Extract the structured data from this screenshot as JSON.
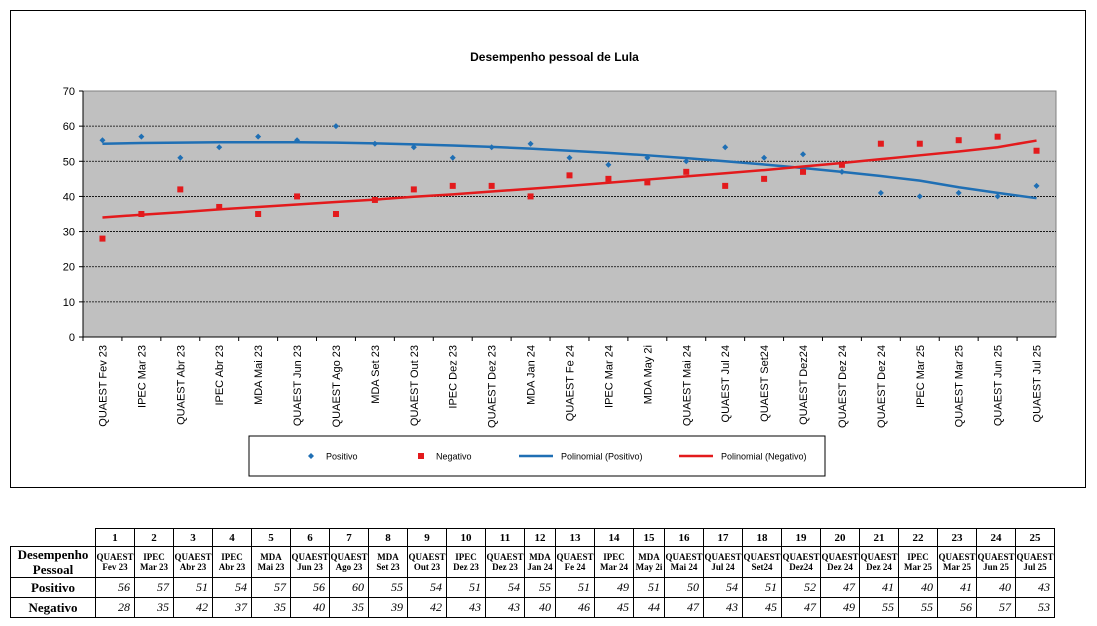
{
  "chart_data": {
    "type": "scatter",
    "title": "Desempenho pessoal de Lula",
    "xlabel": "",
    "ylabel": "",
    "ylim": [
      0,
      70
    ],
    "yticks": [
      0,
      10,
      20,
      30,
      40,
      50,
      60,
      70
    ],
    "grid": true,
    "legend_position": "bottom",
    "categories": [
      "QUAEST Fev 23",
      "IPEC Mar 23",
      "QUAEST Abr 23",
      "IPEC Abr 23",
      "MDA Mai 23",
      "QUAEST Jun 23",
      "QUAEST Ago 23",
      "MDA Set 23",
      "QUAEST Out 23",
      "IPEC Dez 23",
      "QUAEST Dez 23",
      "MDA Jan 24",
      "QUAEST Fe 24",
      "IPEC Mar 24",
      "MDA May 2i",
      "QUAEST Mai 24",
      "QUAEST Jul 24",
      "QUAEST Set24",
      "QUAEST Dez24",
      "QUAEST Dez 24",
      "QUAEST Dez 24",
      "IPEC Mar 25",
      "QUAEST Mar 25",
      "QUAEST Jun 25",
      "QUAEST Jul 25"
    ],
    "series": [
      {
        "name": "Positivo",
        "color": "#1f6fb4",
        "marker": "diamond",
        "values": [
          56,
          57,
          51,
          54,
          57,
          56,
          60,
          55,
          54,
          51,
          54,
          55,
          51,
          49,
          51,
          50,
          54,
          51,
          52,
          47,
          41,
          40,
          41,
          40,
          43
        ]
      },
      {
        "name": "Negativo",
        "color": "#e31a1c",
        "marker": "square",
        "values": [
          28,
          35,
          42,
          37,
          35,
          40,
          35,
          39,
          42,
          43,
          43,
          40,
          46,
          45,
          44,
          47,
          43,
          45,
          47,
          49,
          55,
          55,
          56,
          57,
          53
        ]
      }
    ],
    "trendlines": [
      {
        "name": "Polinomial (Positivo)",
        "color": "#1f6fb4",
        "values": [
          55.0,
          55.2,
          55.3,
          55.4,
          55.4,
          55.4,
          55.3,
          55.1,
          54.8,
          54.5,
          54.1,
          53.6,
          53.0,
          52.4,
          51.7,
          50.9,
          50.0,
          49.1,
          48.1,
          47.0,
          45.8,
          44.5,
          42.6,
          41.0,
          39.5
        ]
      },
      {
        "name": "Polinomial (Negativo)",
        "color": "#e31a1c",
        "values": [
          34.0,
          34.8,
          35.5,
          36.3,
          37.0,
          37.7,
          38.4,
          39.1,
          39.9,
          40.6,
          41.4,
          42.2,
          43.0,
          43.9,
          44.8,
          45.7,
          46.6,
          47.5,
          48.5,
          49.5,
          50.6,
          51.7,
          52.8,
          54.0,
          55.9
        ]
      }
    ]
  },
  "table": {
    "numbers": [
      "1",
      "2",
      "3",
      "4",
      "5",
      "6",
      "7",
      "8",
      "9",
      "10",
      "11",
      "12",
      "13",
      "14",
      "15",
      "16",
      "17",
      "18",
      "19",
      "20",
      "21",
      "22",
      "23",
      "24",
      "25"
    ],
    "header_label": [
      "Desempenho",
      "Pessoal"
    ],
    "columns": [
      [
        "QUAEST",
        "Fev 23"
      ],
      [
        "IPEC",
        "Mar 23"
      ],
      [
        "QUAEST",
        "Abr 23"
      ],
      [
        "IPEC",
        "Abr 23"
      ],
      [
        "MDA",
        "Mai 23"
      ],
      [
        "QUAEST",
        "Jun 23"
      ],
      [
        "QUAEST",
        "Ago 23"
      ],
      [
        "MDA",
        "Set 23"
      ],
      [
        "QUAEST",
        "Out 23"
      ],
      [
        "IPEC",
        "Dez 23"
      ],
      [
        "QUAEST",
        "Dez 23"
      ],
      [
        "MDA",
        "Jan 24"
      ],
      [
        "QUAEST",
        "Fe 24"
      ],
      [
        "IPEC",
        "Mar 24"
      ],
      [
        "MDA",
        "May 2i"
      ],
      [
        "QUAEST",
        "Mai 24"
      ],
      [
        "QUAEST",
        "Jul 24"
      ],
      [
        "QUAEST",
        "Set24"
      ],
      [
        "QUAEST",
        "Dez24"
      ],
      [
        "QUAEST",
        "Dez 24"
      ],
      [
        "QUAEST",
        "Dez 24"
      ],
      [
        "IPEC",
        "Mar 25"
      ],
      [
        "QUAEST",
        "Mar 25"
      ],
      [
        "QUAEST",
        "Jun 25"
      ],
      [
        "QUAEST",
        "Jul 25"
      ]
    ],
    "positivo_label": "Positivo",
    "negativo_label": "Negativo",
    "positivo": [
      "56",
      "57",
      "51",
      "54",
      "57",
      "56",
      "60",
      "55",
      "54",
      "51",
      "54",
      "55",
      "51",
      "49",
      "51",
      "50",
      "54",
      "51",
      "52",
      "47",
      "41",
      "40",
      "41",
      "40",
      "43"
    ],
    "negativo": [
      "28",
      "35",
      "42",
      "37",
      "35",
      "40",
      "35",
      "39",
      "42",
      "43",
      "43",
      "40",
      "46",
      "45",
      "44",
      "47",
      "43",
      "45",
      "47",
      "49",
      "55",
      "55",
      "56",
      "57",
      "53"
    ]
  }
}
